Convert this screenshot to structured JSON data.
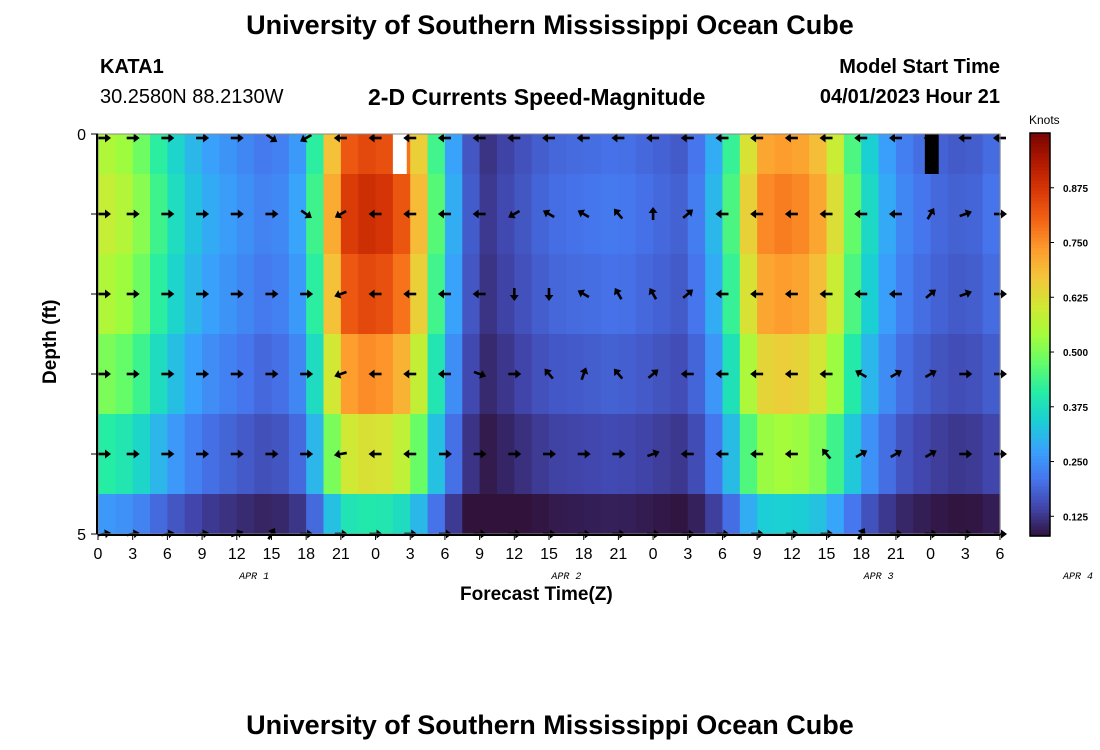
{
  "header": {
    "title": "University of Southern Mississippi Ocean Cube",
    "station": "KATA1",
    "coords": "30.2580N  88.2130W",
    "chart_title": "2-D Currents Speed-Magnitude",
    "model_start_label": "Model Start Time",
    "model_start_value": "04/01/2023 Hour 21"
  },
  "footer": {
    "title": "University of Southern Mississippi Ocean Cube"
  },
  "chart_data": {
    "type": "heatmap",
    "title": "2-D Currents Speed-Magnitude",
    "xlabel": "Forecast Time(Z)",
    "ylabel": "Depth (ft)",
    "ylim": [
      0,
      5
    ],
    "y_tick_labels": [
      "0",
      "5"
    ],
    "x_tick_labels": [
      "0",
      "3",
      "6",
      "9",
      "12",
      "15",
      "18",
      "21",
      "0",
      "3",
      "6",
      "9",
      "12",
      "15",
      "18",
      "21",
      "0",
      "3",
      "6",
      "9",
      "12",
      "15",
      "18",
      "21",
      "0",
      "3",
      "6"
    ],
    "date_labels": [
      {
        "label": "APR 1",
        "hour_index": 4.5
      },
      {
        "label": "APR 2",
        "hour_index": 13.5
      },
      {
        "label": "APR 3",
        "hour_index": 22.5
      },
      {
        "label": "APR 4",
        "hour_index": 28.25
      }
    ],
    "colorbar": {
      "label": "Knots",
      "ticks": [
        0.125,
        0.25,
        0.375,
        0.5,
        0.625,
        0.75,
        0.875
      ],
      "tick_labels": [
        "0.125",
        "0.250",
        "0.375",
        "0.500",
        "0.625",
        "0.750",
        "0.875"
      ],
      "range": [
        0.08,
        1.0
      ],
      "colors": [
        "#30123b",
        "#4145ab",
        "#4675ed",
        "#39a2fc",
        "#1bcfd4",
        "#24eca6",
        "#61fc6c",
        "#a4fc3b",
        "#d1e834",
        "#f3c63a",
        "#fe9b2d",
        "#f36315",
        "#d93806",
        "#b11901",
        "#7a0402"
      ]
    },
    "hours": [
      0,
      3,
      6,
      9,
      12,
      15,
      18,
      21,
      24,
      27,
      30,
      33,
      36,
      39,
      42,
      45,
      48,
      51,
      54,
      57,
      60,
      63,
      66,
      69,
      72,
      75,
      78
    ],
    "depth_layers": [
      "0",
      "1",
      "2",
      "3",
      "4",
      "5"
    ],
    "speed_profile_knots": [
      {
        "hour": 0,
        "speed": 0.6
      },
      {
        "hour": 3,
        "speed": 0.55
      },
      {
        "hour": 6,
        "speed": 0.4
      },
      {
        "hour": 9,
        "speed": 0.3
      },
      {
        "hour": 15,
        "speed": 0.22
      },
      {
        "hour": 18,
        "speed": 0.3
      },
      {
        "hour": 21,
        "speed": 0.85
      },
      {
        "hour": 24,
        "speed": 0.9
      },
      {
        "hour": 27,
        "speed": 0.8
      },
      {
        "hour": 30,
        "speed": 0.35
      },
      {
        "hour": 33,
        "speed": 0.12
      },
      {
        "hour": 39,
        "speed": 0.2
      },
      {
        "hour": 45,
        "speed": 0.22
      },
      {
        "hour": 51,
        "speed": 0.18
      },
      {
        "hour": 54,
        "speed": 0.35
      },
      {
        "hour": 57,
        "speed": 0.75
      },
      {
        "hour": 60,
        "speed": 0.78
      },
      {
        "hour": 63,
        "speed": 0.7
      },
      {
        "hour": 66,
        "speed": 0.4
      },
      {
        "hour": 69,
        "speed": 0.25
      },
      {
        "hour": 72,
        "speed": 0.2
      },
      {
        "hour": 75,
        "speed": 0.18
      },
      {
        "hour": 78,
        "speed": 0.22
      }
    ],
    "depth_factor": [
      0.95,
      1.0,
      0.95,
      0.85,
      0.7,
      0.45
    ],
    "missing_cells": [
      {
        "hour": 25.5,
        "depth": "0",
        "kind": "white"
      },
      {
        "hour": 71.5,
        "depth": "0",
        "kind": "black"
      }
    ],
    "arrow_directions_deg": [
      [
        0,
        0,
        0,
        0,
        0,
        -35,
        -150,
        -180,
        -180,
        -180,
        -180,
        -180,
        -180,
        -180,
        -180,
        -180,
        -180,
        -180,
        -180,
        -180,
        -180,
        -180,
        -180,
        -180,
        -180,
        -180,
        -180
      ],
      [
        0,
        0,
        0,
        0,
        0,
        0,
        -35,
        -150,
        -180,
        -180,
        -180,
        -180,
        -150,
        150,
        150,
        130,
        90,
        40,
        -180,
        -180,
        -180,
        -180,
        -180,
        -180,
        60,
        20,
        0
      ],
      [
        0,
        0,
        0,
        0,
        0,
        0,
        0,
        -160,
        -180,
        -180,
        -180,
        -180,
        -90,
        -90,
        150,
        120,
        120,
        40,
        -180,
        -180,
        -180,
        -180,
        -180,
        -180,
        40,
        20,
        0
      ],
      [
        0,
        0,
        0,
        0,
        0,
        0,
        0,
        -160,
        -180,
        -180,
        -180,
        -20,
        0,
        130,
        70,
        130,
        40,
        -180,
        -180,
        -180,
        -180,
        -180,
        150,
        30,
        30,
        0,
        0
      ],
      [
        0,
        0,
        0,
        0,
        0,
        0,
        0,
        -170,
        -180,
        -180,
        0,
        0,
        0,
        0,
        0,
        0,
        20,
        -180,
        -180,
        -180,
        -180,
        130,
        30,
        30,
        30,
        0,
        0
      ],
      [
        10,
        10,
        10,
        10,
        20,
        60,
        0,
        0,
        0,
        0,
        0,
        0,
        0,
        0,
        0,
        0,
        0,
        0,
        0,
        0,
        0,
        0,
        60,
        0,
        0,
        0,
        0
      ]
    ]
  }
}
